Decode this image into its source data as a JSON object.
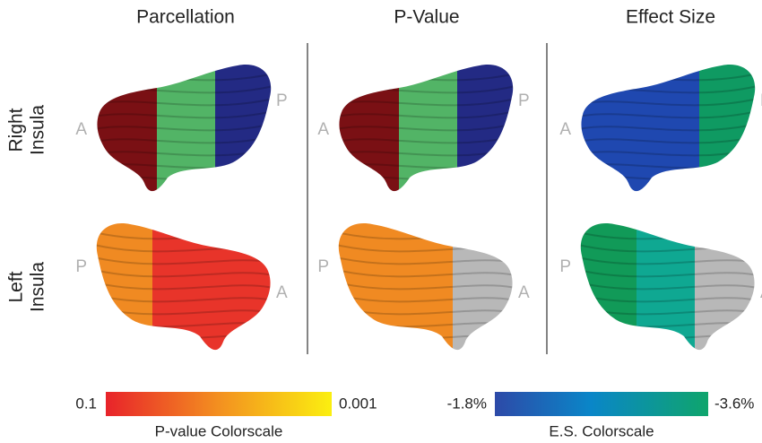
{
  "columns": [
    "Parcellation",
    "P-Value",
    "Effect Size"
  ],
  "rows": [
    {
      "lines": [
        "Right",
        "Insula"
      ],
      "left": "A",
      "right": "P"
    },
    {
      "lines": [
        "Left",
        "Insula"
      ],
      "left": "P",
      "right": "A"
    }
  ],
  "colorscales": [
    {
      "min_label": "0.1",
      "max_label": "0.001",
      "title": "P-value Colorscale"
    },
    {
      "min_label": "-1.8%",
      "max_label": "-3.6%",
      "title": "E.S. Colorscale"
    }
  ]
}
